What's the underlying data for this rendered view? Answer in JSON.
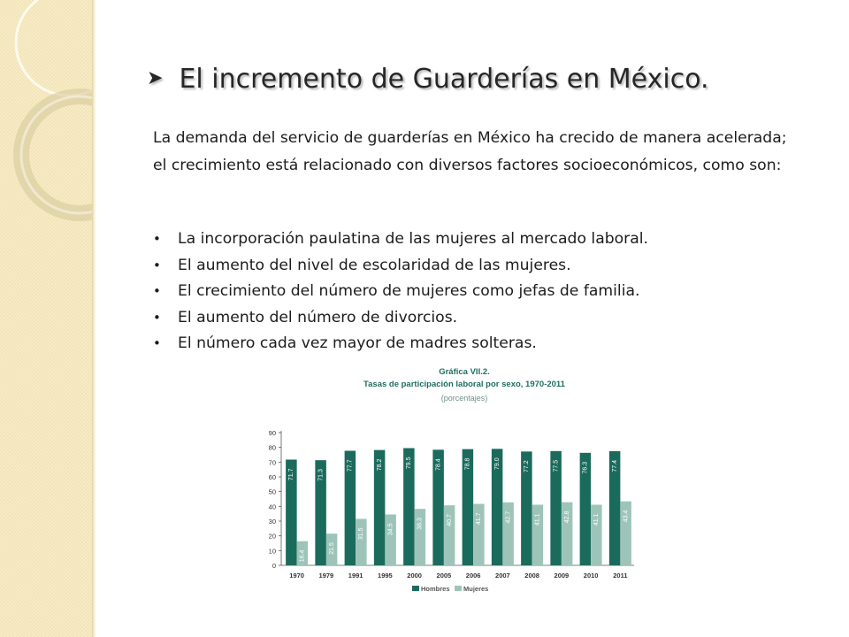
{
  "slide": {
    "title": "El incremento de Guarderías en México.",
    "title_bullet_icon": "arrow-check-bullet-icon",
    "intro": "La demanda del servicio de guarderías en México ha crecido de manera acelerada; el crecimiento está relacionado con diversos factores socioeconómicos, como son:",
    "factors": [
      "La incorporación paulatina de las mujeres al mercado laboral.",
      "El  aumento del nivel de escolaridad de las mujeres.",
      "El crecimiento del número de mujeres como jefas de familia.",
      "El aumento del número de divorcios.",
      "El número cada vez mayor de madres solteras."
    ]
  },
  "colors": {
    "left_panel": "#f3e5b8",
    "hombres": "#1b6b5c",
    "mujeres": "#9ec4ba",
    "chart_title": "#1f6e60"
  },
  "chart_data": {
    "type": "bar",
    "title": "Gráfica VII.2.",
    "subtitle": "Tasas de participación laboral por sexo, 1970-2011",
    "unit_note": "(porcentajes)",
    "categories": [
      "1970",
      "1979",
      "1991",
      "1995",
      "2000",
      "2005",
      "2006",
      "2007",
      "2008",
      "2009",
      "2010",
      "2011"
    ],
    "series": [
      {
        "name": "Hombres",
        "values": [
          71.7,
          71.3,
          77.7,
          78.2,
          79.5,
          78.4,
          78.8,
          79.0,
          77.2,
          77.5,
          76.3,
          77.4
        ]
      },
      {
        "name": "Mujeres",
        "values": [
          16.4,
          21.5,
          31.5,
          34.5,
          38.3,
          40.7,
          41.7,
          42.7,
          41.1,
          42.8,
          41.1,
          43.4
        ]
      }
    ],
    "ylim": [
      0,
      90
    ],
    "yticks": [
      0,
      10,
      20,
      30,
      40,
      50,
      60,
      70,
      80,
      90
    ],
    "grid": false,
    "legend": "bottom"
  }
}
